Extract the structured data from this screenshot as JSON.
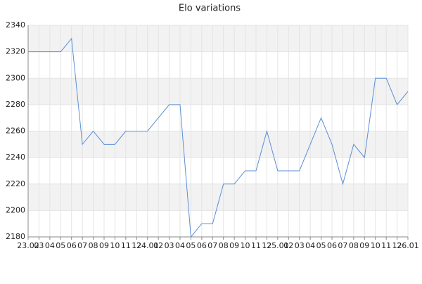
{
  "chart_data": {
    "type": "line",
    "title": "Elo variations",
    "categories": [
      "23.02",
      "03",
      "04",
      "05",
      "06",
      "07",
      "08",
      "09",
      "10",
      "11",
      "12",
      "24.01",
      "02",
      "03",
      "04",
      "05",
      "06",
      "07",
      "08",
      "09",
      "10",
      "11",
      "12",
      "25.01",
      "02",
      "03",
      "04",
      "05",
      "06",
      "07",
      "08",
      "09",
      "10",
      "11",
      "12",
      "26.01"
    ],
    "values": [
      2320,
      2320,
      2320,
      2320,
      2330,
      2250,
      2260,
      2250,
      2250,
      2260,
      2260,
      2260,
      2270,
      2280,
      2280,
      2180,
      2190,
      2190,
      2220,
      2220,
      2230,
      2230,
      2260,
      2230,
      2230,
      2230,
      2250,
      2270,
      2250,
      2220,
      2250,
      2240,
      2300,
      2300,
      2280,
      2290
    ],
    "color": "#5b8fd6",
    "ylim": [
      2180,
      2340
    ],
    "yticks": [
      2180,
      2200,
      2220,
      2240,
      2260,
      2280,
      2300,
      2320,
      2340
    ],
    "grid": true
  }
}
